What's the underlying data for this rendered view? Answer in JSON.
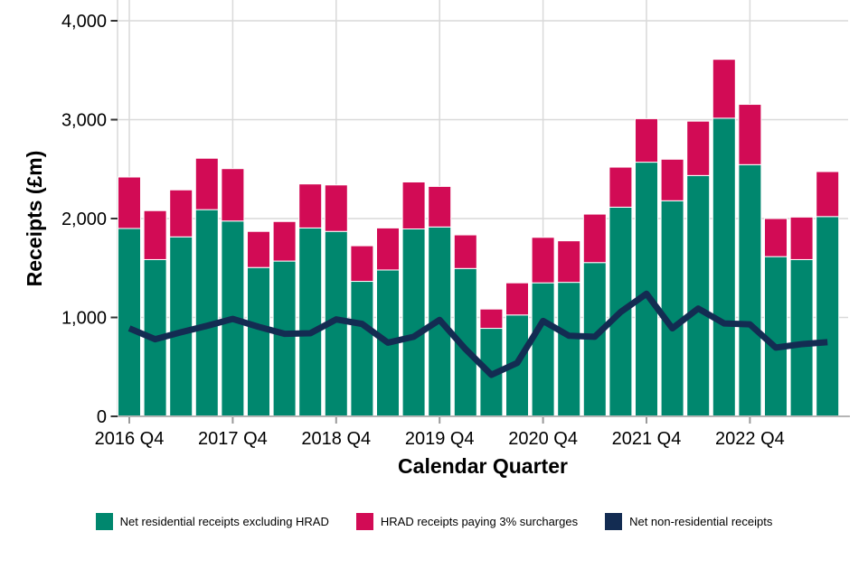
{
  "chart_data": {
    "type": "bar",
    "subtype": "stacked-bars-with-line-overlay",
    "title": "",
    "xlabel": "Calendar Quarter",
    "ylabel": "Receipts (£m)",
    "ylim": [
      0,
      4000
    ],
    "grid": true,
    "legend_position": "bottom",
    "y_ticks": [
      {
        "value": 0,
        "label": "0"
      },
      {
        "value": 1000,
        "label": "1,000"
      },
      {
        "value": 2000,
        "label": "2,000"
      },
      {
        "value": 3000,
        "label": "3,000"
      },
      {
        "value": 4000,
        "label": "4,000"
      }
    ],
    "categories": [
      "2016 Q4",
      "2017 Q1",
      "2017 Q2",
      "2017 Q3",
      "2017 Q4",
      "2018 Q1",
      "2018 Q2",
      "2018 Q3",
      "2018 Q4",
      "2019 Q1",
      "2019 Q2",
      "2019 Q3",
      "2019 Q4",
      "2020 Q1",
      "2020 Q2",
      "2020 Q3",
      "2020 Q4",
      "2021 Q1",
      "2021 Q2",
      "2021 Q3",
      "2021 Q4",
      "2022 Q1",
      "2022 Q2",
      "2022 Q3",
      "2022 Q4",
      "2023 Q1",
      "2023 Q2",
      "2023 Q3"
    ],
    "x_tick_indices": [
      0,
      4,
      8,
      12,
      16,
      20,
      24
    ],
    "x_tick_labels": [
      "2016 Q4",
      "2017 Q4",
      "2018 Q4",
      "2019 Q4",
      "2020 Q4",
      "2021 Q4",
      "2022 Q4"
    ],
    "series": [
      {
        "name": "Net residential receipts excluding HRAD",
        "type": "bar",
        "color": "#00876e",
        "values": [
          1900,
          1585,
          1815,
          2090,
          1975,
          1505,
          1570,
          1905,
          1870,
          1365,
          1480,
          1895,
          1915,
          1495,
          890,
          1025,
          1350,
          1355,
          1555,
          2115,
          2570,
          2180,
          2435,
          3015,
          2545,
          1615,
          1585,
          2020
        ]
      },
      {
        "name": "HRAD receipts paying 3% surcharges",
        "type": "bar",
        "color": "#d20b55",
        "values": [
          520,
          495,
          475,
          520,
          530,
          365,
          400,
          445,
          470,
          360,
          425,
          475,
          410,
          340,
          195,
          325,
          460,
          420,
          490,
          405,
          440,
          420,
          550,
          595,
          610,
          385,
          430,
          455
        ]
      },
      {
        "name": "Net non-residential receipts",
        "type": "line",
        "color": "#132c52",
        "values": [
          890,
          780,
          850,
          915,
          985,
          905,
          835,
          840,
          980,
          935,
          745,
          805,
          975,
          680,
          420,
          540,
          965,
          815,
          805,
          1055,
          1240,
          890,
          1090,
          940,
          930,
          695,
          730,
          750
        ]
      }
    ],
    "style_colors": {
      "gridline": "#d9d9d9",
      "axis_line": "#b5b5b5",
      "y_tick_mark": "#333333",
      "x_tick_mark": "#9a9a9a",
      "text": "#000000",
      "background": "#ffffff"
    }
  }
}
